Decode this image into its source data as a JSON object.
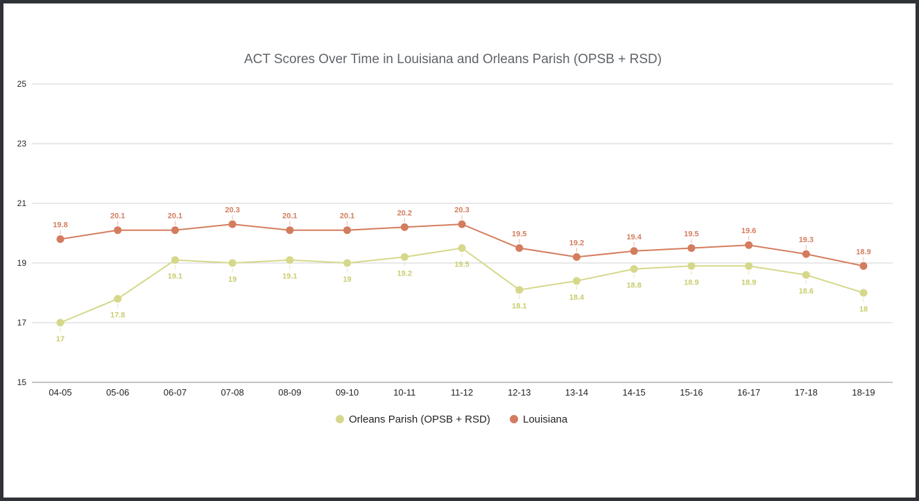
{
  "chart_data": {
    "type": "line",
    "title": "ACT Scores Over Time in Louisiana and Orleans Parish (OPSB + RSD)",
    "xlabel": "",
    "ylabel": "",
    "categories": [
      "04-05",
      "05-06",
      "06-07",
      "07-08",
      "08-09",
      "09-10",
      "10-11",
      "11-12",
      "12-13",
      "13-14",
      "14-15",
      "15-16",
      "16-17",
      "17-18",
      "18-19"
    ],
    "ylim": [
      15,
      25
    ],
    "yticks": [
      15,
      17,
      19,
      21,
      23,
      25
    ],
    "grid": true,
    "legend_position": "bottom",
    "series": [
      {
        "name": "Orleans Parish (OPSB + RSD)",
        "color": "#d5d88a",
        "label_color": "#c9cc6e",
        "label_position": "below",
        "values": [
          17,
          17.8,
          19.1,
          19,
          19.1,
          19,
          19.2,
          19.5,
          18.1,
          18.4,
          18.8,
          18.9,
          18.9,
          18.6,
          18
        ]
      },
      {
        "name": "Louisiana",
        "color": "#d47c5e",
        "label_color": "#d47c5e",
        "label_position": "above",
        "values": [
          19.8,
          20.1,
          20.1,
          20.3,
          20.1,
          20.1,
          20.2,
          20.3,
          19.5,
          19.2,
          19.4,
          19.5,
          19.6,
          19.3,
          18.9
        ]
      }
    ]
  }
}
